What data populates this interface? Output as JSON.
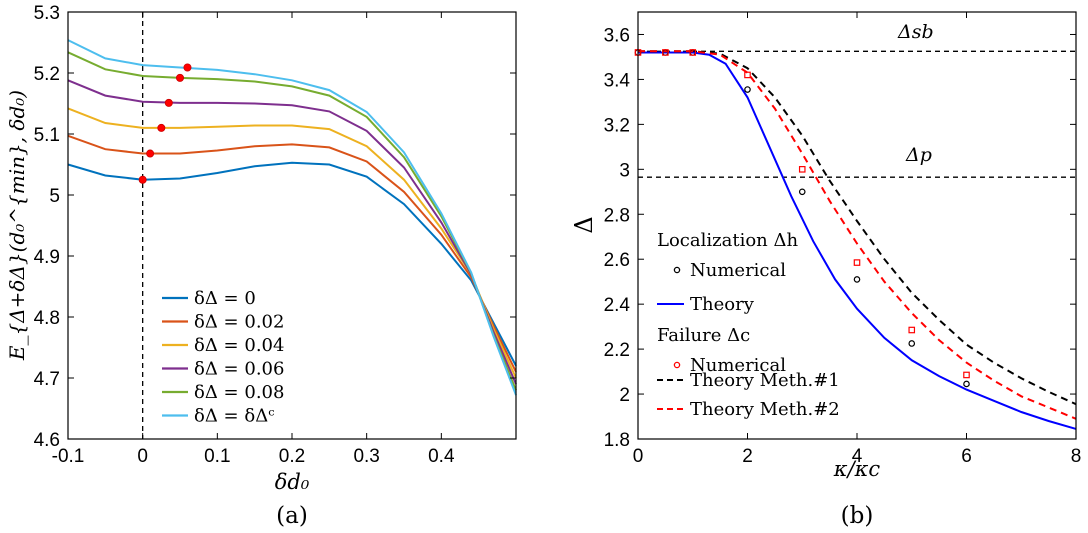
{
  "chart_data": [
    {
      "type": "line",
      "panel_label": "(a)",
      "xlabel": "δd₀",
      "ylabel": "E_{Δ+δΔ}(d₀^{min}, δd₀)",
      "xlim": [
        -0.1,
        0.5
      ],
      "ylim": [
        4.6,
        5.3
      ],
      "xticks": [
        "-0.1",
        "0",
        "0.1",
        "0.2",
        "0.3",
        "0.4"
      ],
      "yticks": [
        "4.6",
        "4.7",
        "4.8",
        "4.9",
        "5",
        "5.1",
        "5.2",
        "5.3"
      ],
      "vertical_dashed_line_x": 0,
      "legend_position": "lower-left",
      "series": [
        {
          "name": "δΔ = 0",
          "color": "#0072BD",
          "x": [
            -0.1,
            -0.05,
            0,
            0.05,
            0.1,
            0.15,
            0.2,
            0.25,
            0.3,
            0.35,
            0.4,
            0.44,
            0.47,
            0.5
          ],
          "y": [
            5.05,
            5.032,
            5.025,
            5.027,
            5.036,
            5.047,
            5.053,
            5.05,
            5.03,
            4.985,
            4.92,
            4.86,
            4.79,
            4.72
          ],
          "marker": [
            0,
            5.025
          ]
        },
        {
          "name": "δΔ = 0.02",
          "color": "#D95319",
          "x": [
            -0.1,
            -0.05,
            0,
            0.05,
            0.1,
            0.15,
            0.2,
            0.25,
            0.3,
            0.35,
            0.4,
            0.44,
            0.47,
            0.5
          ],
          "y": [
            5.097,
            5.075,
            5.068,
            5.068,
            5.073,
            5.08,
            5.083,
            5.078,
            5.055,
            5.005,
            4.935,
            4.865,
            4.785,
            4.71
          ],
          "marker": [
            0.01,
            5.068
          ]
        },
        {
          "name": "δΔ = 0.04",
          "color": "#EDB120",
          "x": [
            -0.1,
            -0.05,
            0,
            0.05,
            0.1,
            0.15,
            0.2,
            0.25,
            0.3,
            0.35,
            0.4,
            0.44,
            0.47,
            0.5
          ],
          "y": [
            5.142,
            5.118,
            5.11,
            5.11,
            5.112,
            5.114,
            5.114,
            5.108,
            5.08,
            5.025,
            4.945,
            4.87,
            4.78,
            4.7
          ],
          "marker": [
            0.025,
            5.11
          ]
        },
        {
          "name": "δΔ = 0.06",
          "color": "#7E2F8E",
          "x": [
            -0.1,
            -0.05,
            0,
            0.05,
            0.1,
            0.15,
            0.2,
            0.25,
            0.3,
            0.35,
            0.4,
            0.44,
            0.47,
            0.5
          ],
          "y": [
            5.188,
            5.163,
            5.153,
            5.151,
            5.151,
            5.15,
            5.147,
            5.137,
            5.105,
            5.045,
            4.955,
            4.87,
            4.775,
            4.69
          ],
          "marker": [
            0.035,
            5.151
          ]
        },
        {
          "name": "δΔ = 0.08",
          "color": "#77AC30",
          "x": [
            -0.1,
            -0.05,
            0,
            0.05,
            0.1,
            0.15,
            0.2,
            0.25,
            0.3,
            0.35,
            0.4,
            0.44,
            0.47,
            0.5
          ],
          "y": [
            5.234,
            5.206,
            5.195,
            5.192,
            5.19,
            5.186,
            5.178,
            5.163,
            5.128,
            5.062,
            4.965,
            4.872,
            4.77,
            4.68
          ],
          "marker": [
            0.05,
            5.192
          ]
        },
        {
          "name": "δΔ = δΔᶜ",
          "color": "#4DBEEE",
          "x": [
            -0.1,
            -0.05,
            0,
            0.05,
            0.1,
            0.15,
            0.2,
            0.25,
            0.3,
            0.35,
            0.4,
            0.44,
            0.47,
            0.5
          ],
          "y": [
            5.254,
            5.224,
            5.213,
            5.209,
            5.205,
            5.198,
            5.188,
            5.172,
            5.136,
            5.07,
            4.97,
            4.873,
            4.768,
            4.672
          ],
          "marker": [
            0.06,
            5.209
          ]
        }
      ]
    },
    {
      "type": "line",
      "panel_label": "(b)",
      "xlabel": "κ/κc",
      "ylabel": "Δ",
      "xlim": [
        0,
        8
      ],
      "ylim": [
        1.8,
        3.7
      ],
      "xticks": [
        "0",
        "2",
        "4",
        "6",
        "8"
      ],
      "yticks": [
        "1.8",
        "2",
        "2.2",
        "2.4",
        "2.6",
        "2.8",
        "3",
        "3.2",
        "3.4",
        "3.6"
      ],
      "reference_lines": [
        {
          "label": "Δsb",
          "y": 3.525
        },
        {
          "label": "Δp",
          "y": 2.965
        }
      ],
      "legend_position": "lower-left",
      "legend": {
        "localization_header": "Localization Δh",
        "failure_header": "Failure Δc",
        "numerical": "Numerical",
        "theory": "Theory",
        "theory1": "Theory Meth.#1",
        "theory2": "Theory Meth.#2"
      },
      "series": [
        {
          "name": "Theory",
          "group": "Localization",
          "style": "solid",
          "color": "#0000FF",
          "x": [
            0,
            1,
            1.3,
            1.6,
            2,
            2.4,
            2.8,
            3.2,
            3.6,
            4,
            4.5,
            5,
            5.5,
            6,
            6.5,
            7,
            7.5,
            8
          ],
          "y": [
            3.52,
            3.52,
            3.51,
            3.47,
            3.32,
            3.1,
            2.88,
            2.68,
            2.51,
            2.38,
            2.25,
            2.15,
            2.08,
            2.02,
            1.97,
            1.92,
            1.88,
            1.845
          ]
        },
        {
          "name": "Numerical",
          "group": "Localization",
          "style": "circle",
          "color": "#000000",
          "x": [
            0,
            0.5,
            1,
            2,
            3,
            4,
            5,
            6
          ],
          "y": [
            3.52,
            3.52,
            3.52,
            3.355,
            2.9,
            2.51,
            2.225,
            2.045
          ]
        },
        {
          "name": "Theory Meth.#1",
          "group": "Failure",
          "style": "dashed",
          "color": "#000000",
          "x": [
            0,
            1,
            1.5,
            2,
            2.5,
            3,
            3.5,
            4,
            4.5,
            5,
            5.5,
            6,
            6.5,
            7,
            7.5,
            8
          ],
          "y": [
            3.525,
            3.525,
            3.515,
            3.45,
            3.32,
            3.15,
            2.95,
            2.77,
            2.6,
            2.45,
            2.33,
            2.22,
            2.14,
            2.07,
            2.01,
            1.955
          ]
        },
        {
          "name": "Theory Meth.#2",
          "group": "Failure",
          "style": "dashed",
          "color": "#FF0000",
          "x": [
            0,
            1,
            1.5,
            2,
            2.5,
            3,
            3.5,
            4,
            4.5,
            5,
            5.5,
            6,
            6.5,
            7,
            7.5,
            8
          ],
          "y": [
            3.525,
            3.525,
            3.51,
            3.43,
            3.27,
            3.07,
            2.86,
            2.67,
            2.5,
            2.36,
            2.24,
            2.14,
            2.06,
            1.99,
            1.94,
            1.89
          ]
        },
        {
          "name": "Numerical",
          "group": "Failure",
          "style": "square",
          "color": "#FF0000",
          "x": [
            0,
            0.5,
            1,
            2,
            3,
            4,
            5,
            6
          ],
          "y": [
            3.52,
            3.52,
            3.52,
            3.42,
            3.0,
            2.585,
            2.285,
            2.085
          ]
        }
      ]
    }
  ]
}
